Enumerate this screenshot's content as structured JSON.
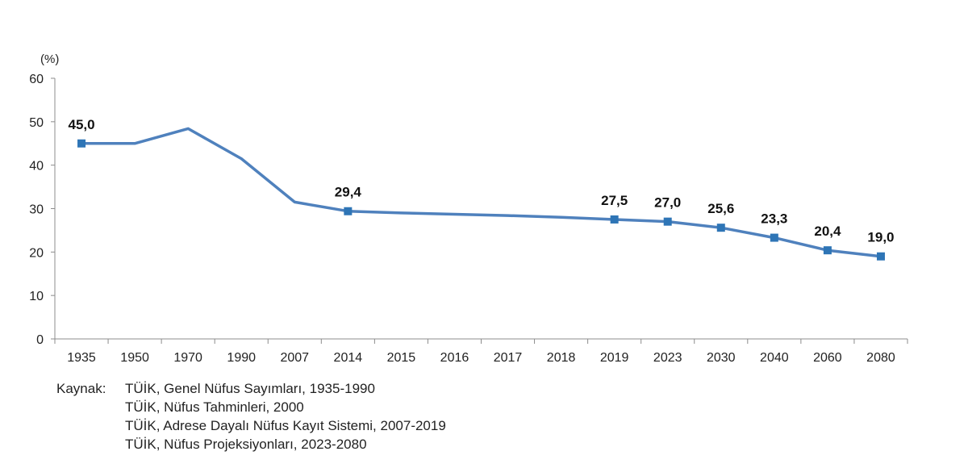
{
  "chart_data": {
    "type": "line",
    "unit_label": "(%)",
    "categories": [
      "1935",
      "1950",
      "1970",
      "1990",
      "2007",
      "2014",
      "2015",
      "2016",
      "2017",
      "2018",
      "2019",
      "2023",
      "2030",
      "2040",
      "2060",
      "2080"
    ],
    "series": [
      {
        "name": "",
        "values": [
          45.0,
          45.0,
          48.4,
          41.5,
          31.5,
          29.4,
          29.0,
          28.7,
          28.4,
          28.0,
          27.5,
          27.0,
          25.6,
          23.3,
          20.4,
          19.0
        ],
        "markers": [
          true,
          false,
          false,
          false,
          false,
          true,
          false,
          false,
          false,
          false,
          true,
          true,
          true,
          true,
          true,
          true
        ],
        "data_labels": [
          "45,0",
          "",
          "",
          "",
          "",
          "29,4",
          "",
          "",
          "",
          "",
          "27,5",
          "27,0",
          "25,6",
          "23,3",
          "20,4",
          "19,0"
        ],
        "color": "#4F81BD"
      }
    ],
    "ylim": [
      0,
      60
    ],
    "yticks": [
      "0",
      "10",
      "20",
      "30",
      "40",
      "50",
      "60"
    ],
    "title": "",
    "xlabel": "",
    "ylabel": "(%)"
  },
  "source": {
    "prefix": "Kaynak:",
    "lines": [
      "TÜİK, Genel Nüfus Sayımları, 1935-1990",
      "TÜİK, Nüfus Tahminleri, 2000",
      "TÜİK, Adrese Dayalı Nüfus Kayıt Sistemi,  2007-2019",
      "TÜİK, Nüfus Projeksiyonları, 2023-2080"
    ]
  }
}
